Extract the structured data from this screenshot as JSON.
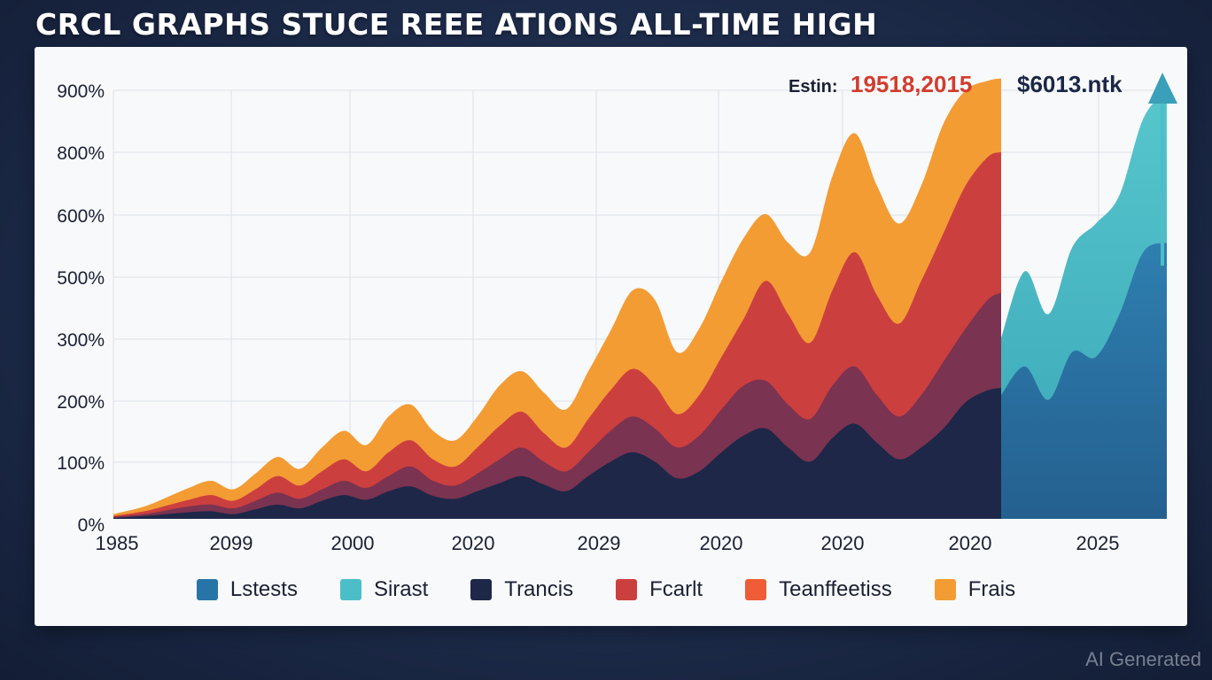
{
  "title": "CRCL GRAPHS STUCE REEE ATIONS ALL-TIME HIGH",
  "watermark": "AI Generated",
  "annotations": {
    "label": "Estin:",
    "value": "19518,2015",
    "right": "$6013.ntk"
  },
  "colors": {
    "Lstests": "#2774a6",
    "Sirast": "#4cbec7",
    "Trancis": "#1e2748",
    "Fcarlt": "#cc3f3f",
    "Teanffeetiss": "#ee5d36",
    "Frais": "#f39c34",
    "maroon": "#7a3350"
  },
  "legend": [
    {
      "label": "Lstests",
      "color": "#2774a6"
    },
    {
      "label": "Sirast",
      "color": "#4cbec7"
    },
    {
      "label": "Trancis",
      "color": "#1e2748"
    },
    {
      "label": "Fcarlt",
      "color": "#cc3f3f"
    },
    {
      "label": "Teanffeetiss",
      "color": "#ee5d36"
    },
    {
      "label": "Frais",
      "color": "#f39c34"
    }
  ],
  "chart_data": {
    "type": "area",
    "title": "CRCL GRAPHS STUCE REEE ATIONS ALL-TIME HIGH",
    "y_tick_labels": [
      "900%",
      "800%",
      "600%",
      "500%",
      "300%",
      "200%",
      "100%",
      "0%"
    ],
    "x_tick_labels": [
      "1985",
      "2099",
      "2000",
      "2020",
      "2029",
      "2020",
      "2020",
      "2020",
      "2025"
    ],
    "ylim": [
      0,
      900
    ],
    "grid": true,
    "legend_position": "bottom",
    "x": [
      0,
      0.035,
      0.06,
      0.085,
      0.11,
      0.135,
      0.16,
      0.185,
      0.21,
      0.235,
      0.26,
      0.285,
      0.31,
      0.335,
      0.36,
      0.385,
      0.41,
      0.435,
      0.46,
      0.485,
      0.51,
      0.535,
      0.56,
      0.585,
      0.61,
      0.635,
      0.66,
      0.685,
      0.71,
      0.735,
      0.76,
      0.785,
      0.81,
      0.835,
      0.86,
      0.885,
      0.91,
      0.935,
      0.96,
      0.985,
      1.0
    ],
    "series": [
      {
        "name": "Trancis",
        "color": "#1e2748",
        "values": [
          2,
          6,
          10,
          14,
          16,
          10,
          20,
          30,
          22,
          38,
          50,
          40,
          58,
          68,
          48,
          42,
          58,
          75,
          90,
          72,
          58,
          90,
          120,
          140,
          120,
          85,
          100,
          140,
          175,
          190,
          150,
          120,
          170,
          200,
          160,
          125,
          150,
          190,
          245,
          270,
          275
        ]
      },
      {
        "name": "maroon",
        "color": "#7a3350",
        "values": [
          4,
          10,
          18,
          26,
          30,
          22,
          38,
          55,
          42,
          62,
          80,
          65,
          90,
          110,
          80,
          70,
          95,
          125,
          150,
          120,
          100,
          140,
          185,
          215,
          190,
          150,
          175,
          230,
          280,
          290,
          240,
          210,
          280,
          320,
          260,
          215,
          260,
          330,
          400,
          460,
          475
        ]
      },
      {
        "name": "Fcarlt",
        "color": "#cc3f3f",
        "values": [
          6,
          16,
          28,
          40,
          50,
          38,
          62,
          90,
          70,
          100,
          125,
          100,
          140,
          165,
          125,
          110,
          150,
          195,
          225,
          180,
          150,
          210,
          270,
          315,
          280,
          220,
          260,
          340,
          420,
          500,
          430,
          370,
          480,
          560,
          470,
          410,
          500,
          600,
          700,
          760,
          770
        ]
      },
      {
        "name": "Frais",
        "color": "#f39c34",
        "values": [
          10,
          26,
          45,
          65,
          80,
          62,
          95,
          130,
          105,
          150,
          185,
          155,
          215,
          240,
          185,
          165,
          215,
          280,
          310,
          265,
          230,
          310,
          395,
          480,
          460,
          350,
          400,
          500,
          590,
          640,
          580,
          560,
          720,
          810,
          700,
          620,
          700,
          830,
          900,
          920,
          925
        ]
      }
    ],
    "forecast_series": [
      {
        "name": "Sirast",
        "color": "#4cbec7",
        "values": [
          380,
          520,
          430,
          570,
          620,
          680,
          840,
          900
        ]
      },
      {
        "name": "Lstests",
        "color": "#2774a6",
        "values": [
          260,
          320,
          250,
          350,
          340,
          430,
          560,
          580
        ]
      }
    ]
  }
}
